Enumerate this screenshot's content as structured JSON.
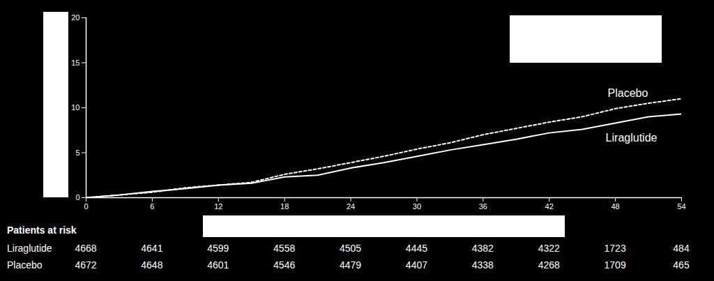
{
  "chart_data": {
    "type": "line",
    "xlim": [
      0,
      54
    ],
    "xticks": [
      0,
      6,
      12,
      18,
      24,
      30,
      36,
      42,
      48,
      54
    ],
    "ylim": [
      0,
      20
    ],
    "yticks": [
      0,
      5,
      10,
      15,
      20
    ],
    "grid": false,
    "x": [
      0,
      3,
      6,
      9,
      12,
      15,
      18,
      21,
      24,
      27,
      30,
      33,
      36,
      39,
      42,
      45,
      48,
      51,
      54
    ],
    "series": [
      {
        "name": "Placebo",
        "color": "#ffffff",
        "line_style": "dashed",
        "values": [
          0,
          0.3,
          0.6,
          1.1,
          1.4,
          1.7,
          2.6,
          3.2,
          3.9,
          4.6,
          5.4,
          6.1,
          7.0,
          7.7,
          8.4,
          9.0,
          9.9,
          10.5,
          11.0
        ]
      },
      {
        "name": "Liraglutide",
        "color": "#ffffff",
        "line_style": "solid",
        "values": [
          0,
          0.3,
          0.7,
          1.0,
          1.4,
          1.6,
          2.3,
          2.5,
          3.3,
          3.9,
          4.6,
          5.3,
          5.9,
          6.5,
          7.2,
          7.6,
          8.3,
          9.0,
          9.3
        ]
      }
    ],
    "at_risk": {
      "title": "Patients at risk",
      "rows": [
        {
          "name": "Liraglutide",
          "values": [
            4668,
            4641,
            4599,
            4558,
            4505,
            4445,
            4382,
            4322,
            1723,
            484
          ]
        },
        {
          "name": "Placebo",
          "values": [
            4672,
            4648,
            4601,
            4546,
            4479,
            4407,
            4338,
            4268,
            1709,
            465
          ]
        }
      ]
    }
  }
}
